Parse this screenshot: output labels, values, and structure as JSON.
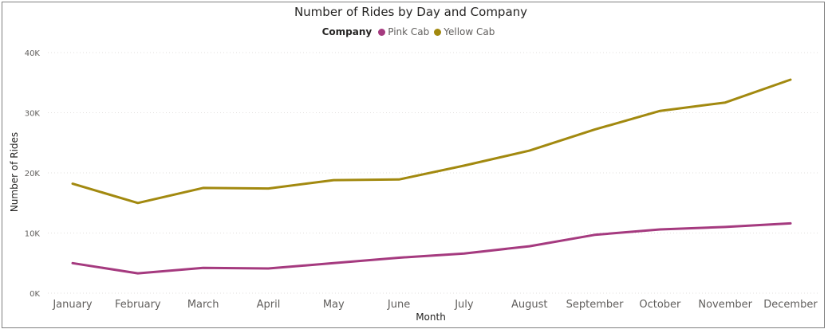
{
  "chart_data": {
    "type": "line",
    "title": "Number of Rides by Day and Company",
    "xlabel": "Month",
    "ylabel": "Number of Rides",
    "legend_title": "Company",
    "legend_position": "top-center",
    "grid": true,
    "ylim": [
      0,
      40000
    ],
    "y_ticks": [
      0,
      10000,
      20000,
      30000,
      40000
    ],
    "y_tick_labels": [
      "0K",
      "10K",
      "20K",
      "30K",
      "40K"
    ],
    "categories": [
      "January",
      "February",
      "March",
      "April",
      "May",
      "June",
      "July",
      "August",
      "September",
      "October",
      "November",
      "December"
    ],
    "series": [
      {
        "name": "Pink Cab",
        "color": "#a53a7f",
        "values": [
          5000,
          3300,
          4200,
          4100,
          5000,
          5900,
          6600,
          7800,
          9700,
          10600,
          11000,
          11600
        ]
      },
      {
        "name": "Yellow Cab",
        "color": "#a2890f",
        "values": [
          18200,
          15000,
          17500,
          17400,
          18800,
          18900,
          21200,
          23700,
          27200,
          30300,
          31700,
          35500
        ]
      }
    ]
  }
}
